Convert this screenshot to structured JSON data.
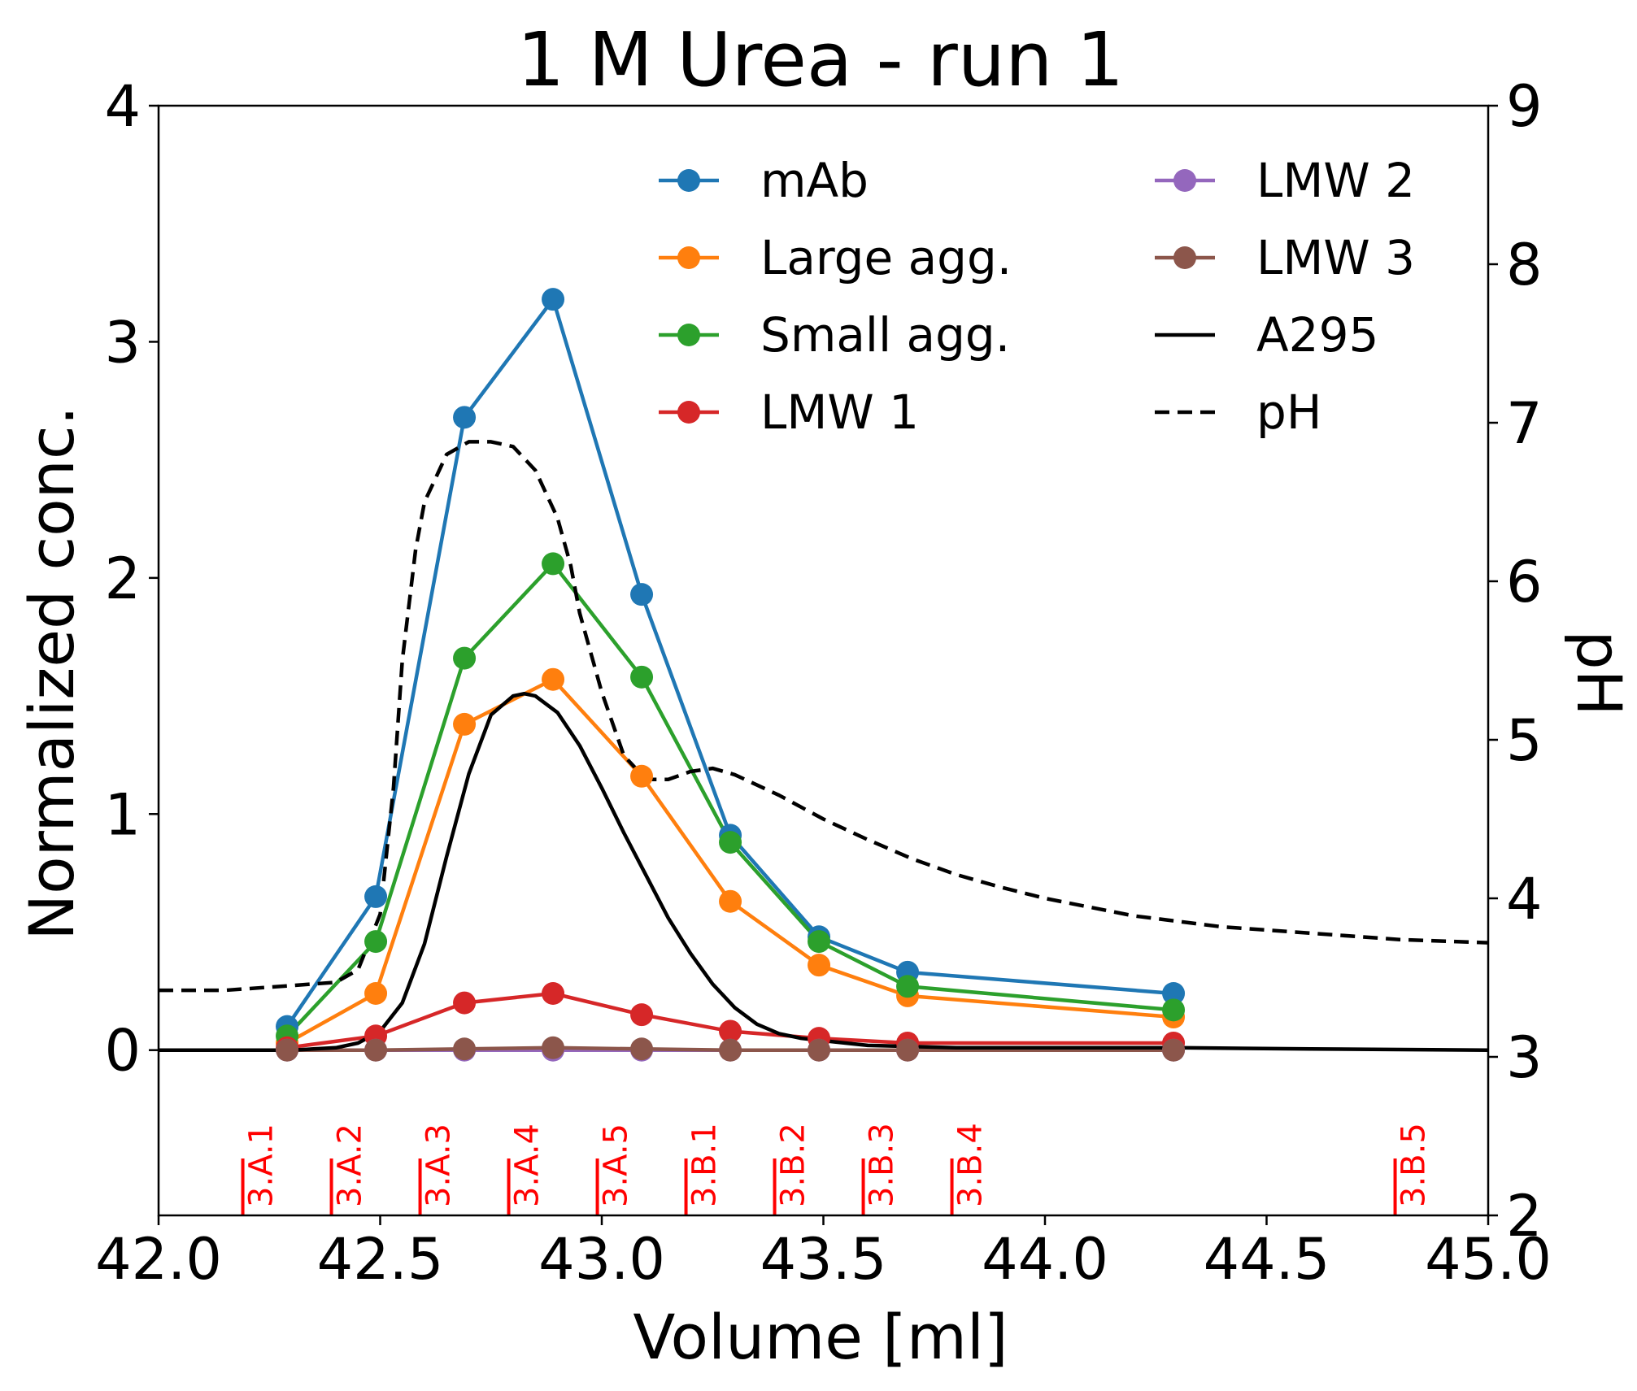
{
  "chart_data": {
    "type": "line",
    "title": "1 M Urea - run 1",
    "xlabel": "Volume [ml]",
    "ylabel": "Normalized conc.",
    "y2label": "pH",
    "xlim": [
      42.0,
      45.0
    ],
    "ylim": [
      -0.7,
      4.0
    ],
    "y2lim": [
      2,
      9
    ],
    "xticks": [
      "42.0",
      "42.5",
      "43.0",
      "43.5",
      "44.0",
      "44.5",
      "45.0"
    ],
    "yticks": [
      "0",
      "1",
      "2",
      "3",
      "4"
    ],
    "y2ticks": [
      "2",
      "3",
      "4",
      "5",
      "6",
      "7",
      "8",
      "9"
    ],
    "legend_position": "top-right",
    "grid": false,
    "series": [
      {
        "name": "mAb",
        "color": "#1f77b4",
        "x": [
          42.29,
          42.49,
          42.69,
          42.89,
          43.09,
          43.29,
          43.49,
          43.69,
          44.29
        ],
        "values": [
          0.1,
          0.65,
          2.68,
          3.18,
          1.93,
          0.91,
          0.48,
          0.33,
          0.24
        ]
      },
      {
        "name": "Large agg.",
        "color": "#ff7f0e",
        "x": [
          42.29,
          42.49,
          42.69,
          42.89,
          43.09,
          43.29,
          43.49,
          43.69,
          44.29
        ],
        "values": [
          0.03,
          0.24,
          1.38,
          1.57,
          1.16,
          0.63,
          0.36,
          0.23,
          0.14
        ]
      },
      {
        "name": "Small agg.",
        "color": "#2ca02c",
        "x": [
          42.29,
          42.49,
          42.69,
          42.89,
          43.09,
          43.29,
          43.49,
          43.69,
          44.29
        ],
        "values": [
          0.06,
          0.46,
          1.66,
          2.06,
          1.58,
          0.88,
          0.46,
          0.27,
          0.17
        ]
      },
      {
        "name": "LMW 1",
        "color": "#d62728",
        "x": [
          42.29,
          42.49,
          42.69,
          42.89,
          43.09,
          43.29,
          43.49,
          43.69,
          44.29
        ],
        "values": [
          0.01,
          0.06,
          0.2,
          0.24,
          0.15,
          0.08,
          0.05,
          0.03,
          0.03
        ]
      },
      {
        "name": "LMW 2",
        "color": "#9467bd",
        "x": [
          42.29,
          42.49,
          42.69,
          42.89,
          43.09,
          43.29,
          43.49,
          43.69,
          44.29
        ],
        "values": [
          0.0,
          0.0,
          0.0,
          0.0,
          0.0,
          0.0,
          0.0,
          0.0,
          0.0
        ]
      },
      {
        "name": "LMW 3",
        "color": "#8c564b",
        "x": [
          42.29,
          42.49,
          42.69,
          42.89,
          43.09,
          43.29,
          43.49,
          43.69,
          44.29
        ],
        "values": [
          0.0,
          0.0,
          0.005,
          0.01,
          0.005,
          0.0,
          0.0,
          0.0,
          0.0
        ]
      },
      {
        "name": "A295",
        "color": "#000000",
        "style": "solid",
        "x": [
          42.0,
          42.3,
          42.4,
          42.45,
          42.5,
          42.55,
          42.6,
          42.65,
          42.7,
          42.75,
          42.8,
          42.825,
          42.85,
          42.9,
          42.95,
          43.0,
          43.05,
          43.1,
          43.15,
          43.2,
          43.25,
          43.3,
          43.35,
          43.4,
          43.45,
          43.5,
          43.55,
          43.6,
          43.7,
          43.8,
          44.0,
          44.3,
          44.6,
          45.0
        ],
        "values": [
          0.0,
          0.0,
          0.01,
          0.03,
          0.08,
          0.2,
          0.45,
          0.82,
          1.17,
          1.42,
          1.5,
          1.51,
          1.5,
          1.43,
          1.29,
          1.11,
          0.92,
          0.74,
          0.56,
          0.41,
          0.28,
          0.18,
          0.11,
          0.07,
          0.05,
          0.04,
          0.03,
          0.02,
          0.015,
          0.01,
          0.01,
          0.01,
          0.005,
          0.0
        ]
      },
      {
        "name": "pH",
        "color": "#000000",
        "style": "dashed",
        "axis": "right",
        "x": [
          42.0,
          42.15,
          42.3,
          42.4,
          42.45,
          42.5,
          42.53,
          42.55,
          42.58,
          42.6,
          42.65,
          42.7,
          42.75,
          42.8,
          42.85,
          42.9,
          42.93,
          42.95,
          43.0,
          43.05,
          43.1,
          43.15,
          43.2,
          43.25,
          43.3,
          43.4,
          43.5,
          43.6,
          43.7,
          43.8,
          43.9,
          44.0,
          44.2,
          44.4,
          44.6,
          44.8,
          45.0
        ],
        "values": [
          3.42,
          3.42,
          3.45,
          3.47,
          3.55,
          3.9,
          4.7,
          5.5,
          6.2,
          6.5,
          6.8,
          6.88,
          6.88,
          6.85,
          6.7,
          6.4,
          6.1,
          5.8,
          5.3,
          4.9,
          4.75,
          4.75,
          4.8,
          4.82,
          4.78,
          4.65,
          4.5,
          4.37,
          4.25,
          4.15,
          4.07,
          4.0,
          3.89,
          3.82,
          3.78,
          3.74,
          3.72
        ]
      }
    ],
    "fractions": [
      {
        "label": "3.A.1",
        "x": 42.19
      },
      {
        "label": "3.A.2",
        "x": 42.39
      },
      {
        "label": "3.A.3",
        "x": 42.59
      },
      {
        "label": "3.A.4",
        "x": 42.79
      },
      {
        "label": "3.A.5",
        "x": 42.99
      },
      {
        "label": "3.B.1",
        "x": 43.19
      },
      {
        "label": "3.B.2",
        "x": 43.39
      },
      {
        "label": "3.B.3",
        "x": 43.59
      },
      {
        "label": "3.B.4",
        "x": 43.79
      },
      {
        "label": "3.B.5",
        "x": 44.79
      }
    ]
  }
}
